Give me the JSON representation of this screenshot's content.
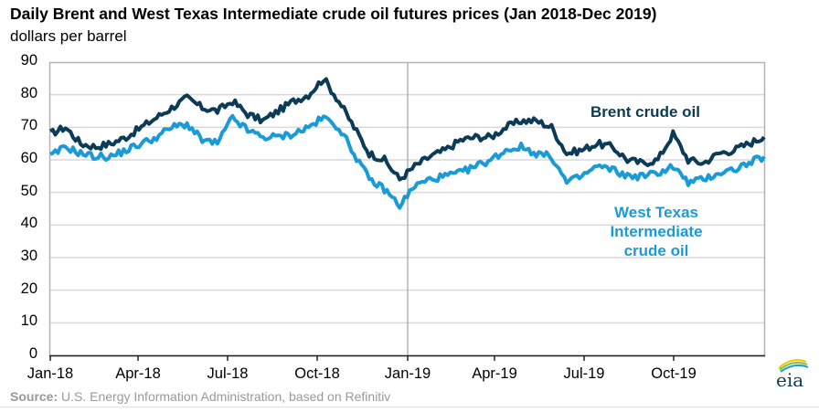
{
  "header": {
    "title": "Daily Brent and West Texas Intermediate crude oil futures prices (Jan 2018-Dec 2019)",
    "subtitle": "dollars per barrel"
  },
  "footer": {
    "source_label": "Source:",
    "source_text": " U.S. Energy Information Administration, based on Refinitiv",
    "logo_text": "eia"
  },
  "colors": {
    "brent": "#0b3b56",
    "wti": "#1a9bd7",
    "grid": "#d9d9d9",
    "axis": "#b3b3b3"
  },
  "chart_data": {
    "type": "line",
    "title": "Daily Brent and West Texas Intermediate crude oil futures prices (Jan 2018-Dec 2019)",
    "subtitle": "dollars per barrel",
    "xlabel": "",
    "ylabel": "dollars per barrel",
    "ylim": [
      0,
      90
    ],
    "yticks": [
      0,
      10,
      20,
      30,
      40,
      50,
      60,
      70,
      80,
      90
    ],
    "xtick_labels": [
      "Jan-18",
      "Apr-18",
      "Jul-18",
      "Oct-18",
      "Jan-19",
      "Apr-19",
      "Jul-19",
      "Oct-19"
    ],
    "grid": true,
    "legend_position": "inline labels (right side)",
    "annotations": [
      "Brent crude oil",
      "West Texas Intermediate crude oil"
    ],
    "vertical_marker": "Jan-19",
    "x": [
      "Jan-18a",
      "Jan-18b",
      "Feb-18a",
      "Feb-18b",
      "Mar-18a",
      "Mar-18b",
      "Apr-18a",
      "Apr-18b",
      "May-18a",
      "May-18b",
      "Jun-18a",
      "Jun-18b",
      "Jul-18a",
      "Jul-18b",
      "Aug-18a",
      "Aug-18b",
      "Sep-18a",
      "Sep-18b",
      "Oct-18a",
      "Oct-18b",
      "Nov-18a",
      "Nov-18b",
      "Dec-18a",
      "Dec-18b",
      "Jan-19a",
      "Jan-19b",
      "Feb-19a",
      "Feb-19b",
      "Mar-19a",
      "Mar-19b",
      "Apr-19a",
      "Apr-19b",
      "May-19a",
      "May-19b",
      "Jun-19a",
      "Jun-19b",
      "Jul-19a",
      "Jul-19b",
      "Aug-19a",
      "Aug-19b",
      "Sep-19a",
      "Sep-19b",
      "Oct-19a",
      "Oct-19b",
      "Nov-19a",
      "Nov-19b",
      "Dec-19a",
      "Dec-19b"
    ],
    "series": [
      {
        "name": "Brent crude oil",
        "values": [
          68,
          70,
          65,
          64,
          65,
          67,
          70,
          73,
          76,
          79,
          76,
          75,
          78,
          74,
          72,
          75,
          78,
          80,
          85,
          78,
          70,
          62,
          60,
          54,
          58,
          61,
          63,
          66,
          67,
          67,
          70,
          72,
          72,
          70,
          62,
          63,
          65,
          64,
          60,
          59,
          60,
          68,
          60,
          59,
          62,
          63,
          65,
          67
        ]
      },
      {
        "name": "West Texas Intermediate crude oil",
        "values": [
          61,
          64,
          62,
          61,
          61,
          63,
          65,
          67,
          70,
          71,
          66,
          65,
          73,
          69,
          67,
          67,
          68,
          70,
          73,
          70,
          62,
          54,
          51,
          46,
          52,
          54,
          55,
          56,
          58,
          60,
          63,
          64,
          62,
          61,
          53,
          55,
          58,
          57,
          55,
          55,
          56,
          58,
          53,
          54,
          56,
          57,
          59,
          61
        ]
      }
    ]
  }
}
